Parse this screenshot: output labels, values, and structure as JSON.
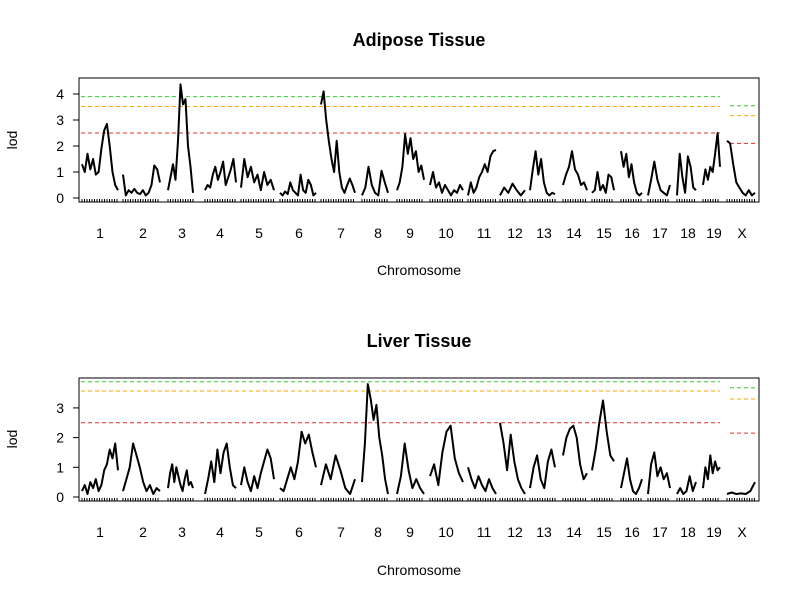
{
  "chart_data": [
    {
      "type": "line",
      "title": "Adipose Tissue",
      "xlabel": "Chromosome",
      "ylabel": "lod",
      "ylim": [
        0,
        4.4
      ],
      "yticks": [
        "0",
        "1",
        "2",
        "3",
        "4"
      ],
      "grid": false,
      "chromosomes": [
        "1",
        "2",
        "3",
        "4",
        "5",
        "6",
        "7",
        "8",
        "9",
        "10",
        "11",
        "12",
        "13",
        "14",
        "15",
        "16",
        "17",
        "18",
        "19",
        "X"
      ],
      "thresholds": [
        {
          "autosome": 3.9,
          "x": 3.55,
          "color": "#33cc33"
        },
        {
          "autosome": 3.52,
          "x": 3.17,
          "color": "#ffa500"
        },
        {
          "autosome": 2.5,
          "x": 2.1,
          "color": "#e0302a"
        }
      ],
      "series": [
        [
          1.3,
          1.0,
          1.7,
          1.1,
          1.5,
          0.9,
          1.0,
          1.9,
          2.6,
          2.85,
          2.0,
          1.0,
          0.5,
          0.3
        ],
        [
          0.9,
          0.1,
          0.3,
          0.2,
          0.35,
          0.2,
          0.15,
          0.3,
          0.1,
          0.2,
          0.5,
          1.25,
          1.1,
          0.6
        ],
        [
          0.3,
          0.8,
          1.3,
          0.7,
          2.2,
          4.37,
          3.6,
          3.8,
          2.0,
          1.2,
          0.2
        ],
        [
          0.3,
          0.5,
          0.4,
          0.9,
          1.2,
          0.7,
          1.0,
          1.4,
          0.5,
          0.8,
          1.1,
          1.5,
          0.6
        ],
        [
          0.4,
          1.5,
          0.8,
          1.2,
          0.6,
          0.9,
          0.3,
          1.0,
          0.5,
          0.7,
          0.3
        ],
        [
          0.2,
          0.1,
          0.25,
          0.15,
          0.6,
          0.3,
          0.2,
          0.1,
          0.9,
          0.3,
          0.2,
          0.7,
          0.5,
          0.1,
          0.2
        ],
        [
          3.6,
          4.1,
          3.0,
          2.2,
          1.5,
          1.0,
          2.2,
          1.0,
          0.4,
          0.2,
          0.5,
          0.75,
          0.5,
          0.2
        ],
        [
          0.1,
          0.4,
          1.2,
          0.5,
          0.2,
          0.1,
          1.05,
          0.6,
          0.2
        ],
        [
          0.3,
          0.6,
          1.2,
          2.45,
          1.7,
          2.3,
          1.5,
          1.8,
          1.0,
          1.25,
          0.7
        ],
        [
          0.5,
          1.0,
          0.4,
          0.6,
          0.2,
          0.5,
          0.3,
          0.1,
          0.3,
          0.2,
          0.5,
          0.3
        ],
        [
          0.1,
          0.6,
          0.2,
          0.4,
          0.8,
          1.0,
          1.3,
          1.0,
          1.6,
          1.8,
          1.85
        ],
        [
          0.1,
          0.4,
          0.2,
          0.55,
          0.3,
          0.1,
          0.3
        ],
        [
          0.3,
          1.1,
          1.8,
          0.9,
          1.5,
          0.6,
          0.2,
          0.1,
          0.2,
          0.15
        ],
        [
          0.5,
          0.9,
          1.2,
          1.8,
          1.1,
          0.9,
          0.5,
          0.6,
          0.3
        ],
        [
          0.2,
          0.3,
          1.0,
          0.3,
          0.5,
          0.2,
          0.9,
          0.8,
          0.3
        ],
        [
          1.8,
          1.2,
          1.7,
          0.8,
          1.3,
          0.6,
          0.2,
          0.1,
          0.2
        ],
        [
          0.1,
          0.7,
          1.4,
          0.7,
          0.3,
          0.2,
          0.1,
          0.5
        ],
        [
          0.1,
          1.7,
          0.8,
          0.2,
          1.6,
          1.2,
          0.4,
          0.3
        ],
        [
          0.5,
          1.1,
          0.7,
          1.2,
          1.0,
          1.7,
          2.5,
          1.2
        ],
        [
          2.2,
          2.1,
          1.3,
          0.6,
          0.4,
          0.2,
          0.1,
          0.3,
          0.1,
          0.2
        ]
      ]
    },
    {
      "type": "line",
      "title": "Liver Tissue",
      "xlabel": "Chromosome",
      "ylabel": "lod",
      "ylim": [
        0,
        3.95
      ],
      "yticks": [
        "0",
        "1",
        "2",
        "3"
      ],
      "grid": false,
      "chromosomes": [
        "1",
        "2",
        "3",
        "4",
        "5",
        "6",
        "7",
        "8",
        "9",
        "10",
        "11",
        "12",
        "13",
        "14",
        "15",
        "16",
        "17",
        "18",
        "19",
        "X"
      ],
      "thresholds": [
        {
          "autosome": 3.88,
          "x": 3.68,
          "color": "#33cc33"
        },
        {
          "autosome": 3.57,
          "x": 3.3,
          "color": "#ffa500"
        },
        {
          "autosome": 2.5,
          "x": 2.15,
          "color": "#e0302a"
        }
      ],
      "series": [
        [
          0.2,
          0.4,
          0.1,
          0.5,
          0.3,
          0.6,
          0.2,
          0.4,
          0.9,
          1.1,
          1.6,
          1.3,
          1.8,
          0.9
        ],
        [
          0.2,
          0.6,
          1.0,
          1.8,
          1.4,
          1.0,
          0.5,
          0.2,
          0.4,
          0.1,
          0.3,
          0.2
        ],
        [
          0.3,
          0.8,
          1.1,
          0.5,
          1.0,
          0.7,
          0.4,
          0.2,
          0.6,
          0.9,
          0.4,
          0.5,
          0.3
        ],
        [
          0.1,
          0.6,
          1.2,
          0.5,
          1.6,
          0.8,
          1.5,
          1.8,
          1.0,
          0.4,
          0.3
        ],
        [
          0.4,
          1.0,
          0.5,
          0.2,
          0.7,
          0.3,
          0.8,
          1.2,
          1.6,
          1.3,
          0.6
        ],
        [
          0.3,
          0.2,
          0.6,
          1.0,
          0.6,
          1.2,
          2.2,
          1.8,
          2.1,
          1.5,
          1.0
        ],
        [
          0.4,
          1.1,
          0.6,
          1.4,
          0.9,
          0.3,
          0.1,
          0.6
        ],
        [
          0.5,
          1.8,
          3.8,
          3.3,
          2.6,
          3.1,
          2.0,
          1.4,
          0.6,
          0.1
        ],
        [
          0.1,
          0.7,
          1.8,
          0.9,
          0.3,
          0.6,
          0.3,
          0.1
        ],
        [
          0.7,
          1.1,
          0.4,
          1.5,
          2.2,
          2.4,
          1.3,
          0.8,
          0.5
        ],
        [
          1.0,
          0.6,
          0.3,
          0.7,
          0.4,
          0.2,
          0.6,
          0.3,
          0.1
        ],
        [
          2.5,
          1.8,
          0.9,
          2.1,
          1.2,
          0.6,
          0.3,
          0.1
        ],
        [
          0.3,
          1.0,
          1.4,
          0.6,
          0.3,
          1.2,
          1.6,
          1.0
        ],
        [
          1.4,
          2.0,
          2.3,
          2.4,
          2.0,
          1.1,
          0.6,
          0.8
        ],
        [
          0.9,
          1.6,
          2.5,
          3.25,
          2.2,
          1.4,
          1.2
        ],
        [
          0.3,
          0.8,
          1.3,
          0.6,
          0.2,
          0.1,
          0.3,
          0.6
        ],
        [
          0.1,
          1.1,
          1.5,
          0.7,
          1.0,
          0.6,
          0.8,
          0.3
        ],
        [
          0.1,
          0.3,
          0.1,
          0.2,
          0.7,
          0.2,
          0.5
        ],
        [
          0.3,
          1.0,
          0.6,
          1.4,
          0.8,
          1.2,
          0.9,
          1.0
        ],
        [
          0.1,
          0.15,
          0.1,
          0.12,
          0.1,
          0.2,
          0.5
        ]
      ]
    }
  ]
}
